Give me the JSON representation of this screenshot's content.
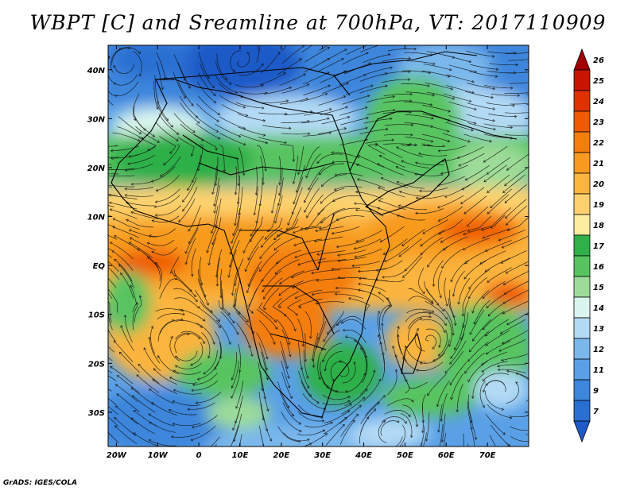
{
  "title": "WBPT [C] and Sreamline at 700hPa, VT: 2017110909",
  "footer": "GrADS: IGES/COLA",
  "map": {
    "lon_range": [
      -22,
      80
    ],
    "lat_range": [
      -37,
      45
    ],
    "lon_ticks": [
      "20W",
      "10W",
      "0",
      "10E",
      "20E",
      "30E",
      "40E",
      "50E",
      "60E",
      "70E"
    ],
    "lon_tick_values": [
      -20,
      -10,
      0,
      10,
      20,
      30,
      40,
      50,
      60,
      70
    ],
    "lat_ticks": [
      "40N",
      "30N",
      "20N",
      "10N",
      "EQ",
      "10S",
      "20S",
      "30S"
    ],
    "lat_tick_values": [
      40,
      30,
      20,
      10,
      0,
      -10,
      -20,
      -30
    ]
  },
  "colorbar": {
    "labels": [
      "26",
      "25",
      "24",
      "23",
      "22",
      "21",
      "20",
      "19",
      "18",
      "17",
      "16",
      "15",
      "14",
      "13",
      "12",
      "11",
      "9",
      "7"
    ],
    "colors": [
      "#a00000",
      "#c81400",
      "#e03200",
      "#f05a00",
      "#f57d0a",
      "#f89a1e",
      "#fbb43c",
      "#fdd26e",
      "#fcec9e",
      "#2fb048",
      "#58c460",
      "#9ddc98",
      "#daf5ee",
      "#b3daf5",
      "#7ab8ec",
      "#5aa0e6",
      "#3c86dc",
      "#2a6fd2",
      "#1e5ac8"
    ]
  },
  "colors": {
    "ocean_deep": "#1e5ac8",
    "ocean_mid": "#5aa0e6",
    "pale": "#daf5ee",
    "green": "#2fb048",
    "yellow": "#fdd26e",
    "orange": "#f57d0a",
    "red": "#e03200"
  }
}
